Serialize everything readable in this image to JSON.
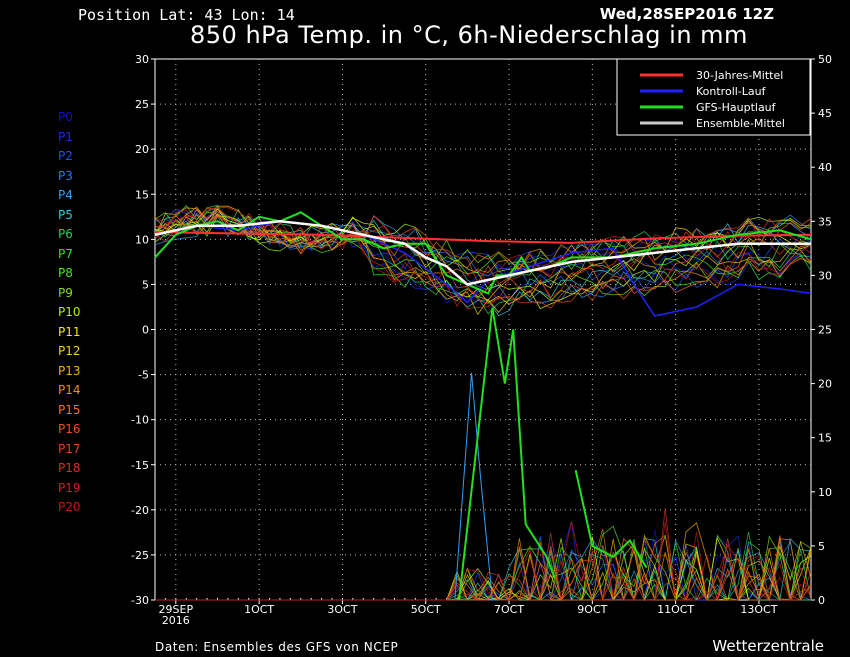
{
  "header": {
    "position": "Position   Lat: 43 Lon: 14",
    "date": "Wed,28SEP2016 12Z",
    "title": "850 hPa Temp. in °C, 6h-Niederschlag in mm"
  },
  "members": [
    {
      "label": "P0",
      "color": "#1010c8"
    },
    {
      "label": "P1",
      "color": "#1a2ee0"
    },
    {
      "label": "P2",
      "color": "#2050f0"
    },
    {
      "label": "P3",
      "color": "#2878f0"
    },
    {
      "label": "P4",
      "color": "#30a0f0"
    },
    {
      "label": "P5",
      "color": "#30c8e0"
    },
    {
      "label": "P6",
      "color": "#20d060"
    },
    {
      "label": "P7",
      "color": "#30e030"
    },
    {
      "label": "P8",
      "color": "#50e020"
    },
    {
      "label": "P9",
      "color": "#80e010"
    },
    {
      "label": "P10",
      "color": "#b0f000"
    },
    {
      "label": "P11",
      "color": "#f0f000"
    },
    {
      "label": "P12",
      "color": "#f0d000"
    },
    {
      "label": "P13",
      "color": "#f0b000"
    },
    {
      "label": "P14",
      "color": "#f09000"
    },
    {
      "label": "P15",
      "color": "#f07020"
    },
    {
      "label": "P16",
      "color": "#e85020"
    },
    {
      "label": "P17",
      "color": "#e04020"
    },
    {
      "label": "P18",
      "color": "#d83020"
    },
    {
      "label": "P19",
      "color": "#d02020"
    },
    {
      "label": "P20",
      "color": "#c01818"
    }
  ],
  "footer": {
    "source": "Daten: Ensembles des GFS von NCEP",
    "brand": "Wetterzentrale"
  },
  "chart_data": {
    "type": "line",
    "x_ticks": [
      "29SEP\n2016",
      "1OCT",
      "3OCT",
      "5OCT",
      "7OCT",
      "9OCT",
      "11OCT",
      "13OCT"
    ],
    "x_domain_days": [
      0,
      15.75
    ],
    "y_left": {
      "ylim": [
        -30,
        30
      ],
      "ticks": [
        30,
        25,
        20,
        15,
        10,
        5,
        0,
        -5,
        -10,
        -15,
        -20,
        -25,
        -30
      ]
    },
    "y_right": {
      "ylim": [
        0,
        50
      ],
      "ticks": [
        50,
        45,
        40,
        35,
        30,
        25,
        20,
        15,
        10,
        5,
        0
      ]
    },
    "grid": true,
    "legend_position": "top-right",
    "legend": [
      {
        "name": "30-Jahres-Mittel",
        "color": "#ff3030"
      },
      {
        "name": "Kontroll-Lauf",
        "color": "#2020ff"
      },
      {
        "name": "GFS-Hauptlauf",
        "color": "#20e020"
      },
      {
        "name": "Ensemble-Mittel",
        "color": "#c8c8c8"
      }
    ],
    "climatology": {
      "x": [
        0,
        4,
        8,
        10,
        12,
        14,
        15.75
      ],
      "y": [
        10.8,
        10.5,
        9.8,
        9.6,
        10.1,
        10.4,
        10.5
      ]
    },
    "control_run": {
      "x": [
        0,
        1,
        2,
        3,
        4,
        5,
        5.5,
        6,
        7,
        7.5,
        8,
        9,
        10,
        11,
        11.5,
        12,
        13,
        14,
        15,
        15.75
      ],
      "y": [
        10.5,
        11.5,
        11,
        12,
        11.5,
        10.5,
        9.5,
        8.5,
        5,
        3,
        5.5,
        7,
        8.5,
        9,
        5,
        1.5,
        2.5,
        5,
        4.5,
        4
      ]
    },
    "main_run": {
      "x": [
        0,
        0.5,
        1,
        1.5,
        2,
        2.5,
        3,
        3.5,
        4,
        4.5,
        5,
        5.5,
        6,
        6.5,
        7,
        7.5,
        8,
        8.2,
        8.5,
        8.8,
        9,
        9.5,
        10,
        11,
        12,
        13,
        14,
        15,
        15.75
      ],
      "y": [
        8,
        10.5,
        11.5,
        12,
        11,
        12.5,
        12,
        13,
        11.5,
        10,
        10,
        9,
        9.5,
        9.5,
        6,
        5,
        4,
        6,
        6,
        8,
        6.5,
        7,
        8,
        8,
        9,
        9.5,
        10.5,
        11,
        10
      ]
    },
    "ensemble_mean": {
      "x": [
        0,
        1,
        2,
        3,
        4,
        5,
        6,
        6.5,
        7,
        7.5,
        8,
        9,
        10,
        11,
        12,
        13,
        14,
        15,
        15.75
      ],
      "y": [
        10.5,
        11.5,
        11.5,
        12,
        11.5,
        10.5,
        9.5,
        8,
        7,
        5,
        5.5,
        6.5,
        7.5,
        8,
        8.5,
        9,
        9.5,
        9.5,
        9.5
      ]
    }
  }
}
